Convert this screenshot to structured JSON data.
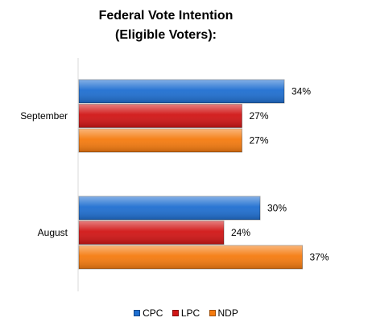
{
  "chart_data": {
    "type": "bar",
    "orientation": "horizontal",
    "title_lines": [
      "Federal Vote Intention",
      "(Eligible Voters):"
    ],
    "categories": [
      "September",
      "August"
    ],
    "series": [
      {
        "name": "CPC",
        "color": "#1f6fd1",
        "values": [
          34,
          30
        ],
        "labels": [
          "34%",
          "30%"
        ]
      },
      {
        "name": "LPC",
        "color": "#d11515",
        "values": [
          27,
          24
        ],
        "labels": [
          "27%",
          "24%"
        ]
      },
      {
        "name": "NDP",
        "color": "#f57b0f",
        "values": [
          27,
          37
        ],
        "labels": [
          "27%",
          "37%"
        ]
      }
    ],
    "xlim": [
      0,
      40
    ],
    "grid": false,
    "legend_position": "bottom"
  }
}
